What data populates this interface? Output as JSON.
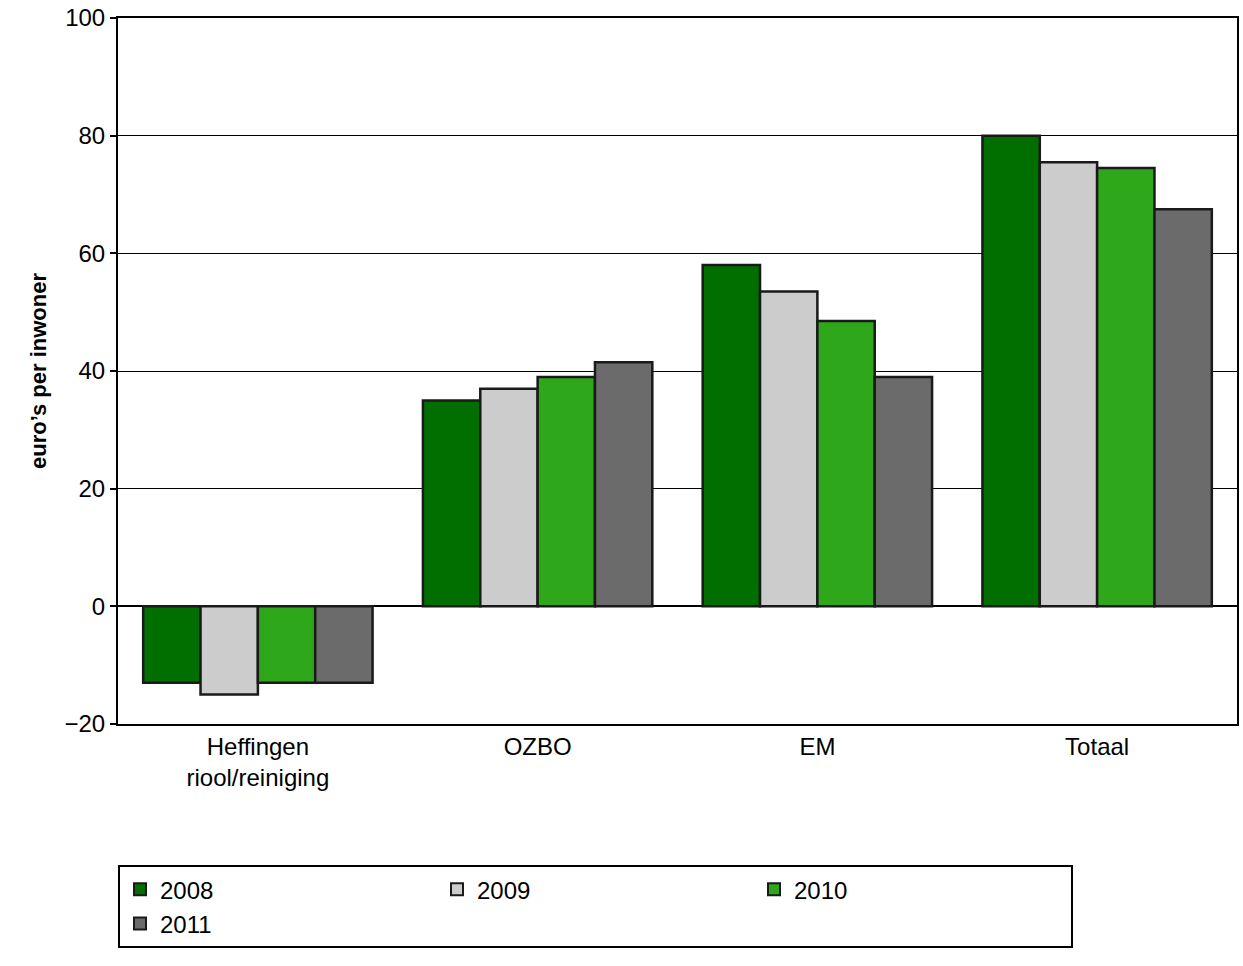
{
  "chart_data": {
    "type": "bar",
    "y_label": "euro’s per inwoner",
    "categories": [
      "Heffingen\nriool/reiniging",
      "OZBO",
      "EM",
      "Totaal"
    ],
    "series": [
      {
        "name": "2008",
        "color": "#006f00",
        "values": [
          -13,
          35,
          58,
          80
        ]
      },
      {
        "name": "2009",
        "color": "#cccccc",
        "values": [
          -15,
          37,
          53.5,
          75.5
        ]
      },
      {
        "name": "2010",
        "color": "#2ea81a",
        "values": [
          -13,
          39,
          48.5,
          74.5
        ]
      },
      {
        "name": "2011",
        "color": "#6b6b6b",
        "values": [
          -13,
          41.5,
          39,
          67.5
        ]
      }
    ],
    "ylim": [
      -20,
      100
    ],
    "yticks": [
      -20,
      0,
      20,
      40,
      60,
      80,
      100
    ],
    "grid": true,
    "legend": "bottom"
  }
}
